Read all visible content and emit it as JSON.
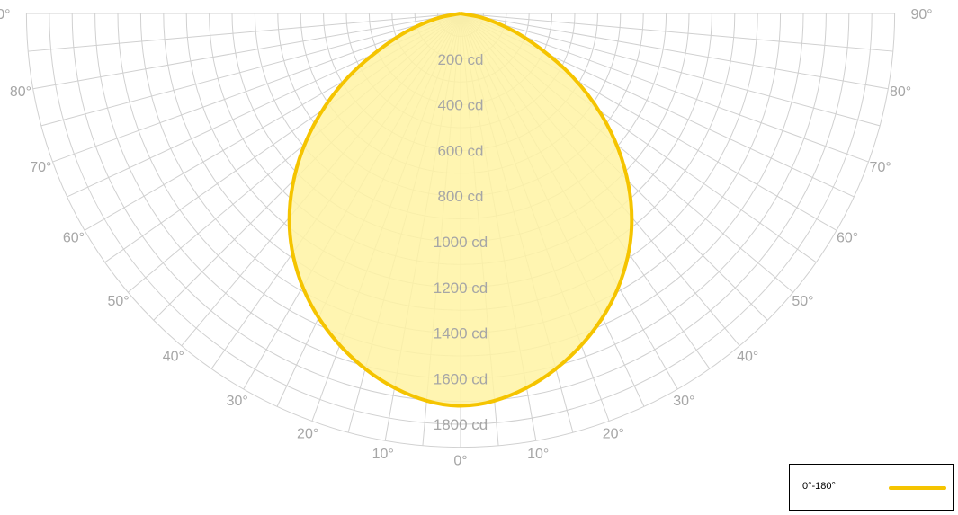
{
  "chart_data": {
    "type": "polar-luminous-intensity",
    "unit": "cd",
    "angles_deg": [
      0,
      10,
      20,
      30,
      40,
      50,
      60,
      70,
      80,
      90
    ],
    "angle_labels": [
      "0°",
      "10°",
      "20°",
      "30°",
      "40°",
      "50°",
      "60°",
      "70°",
      "80°",
      "90°"
    ],
    "radial_labels": [
      "200 cd",
      "400 cd",
      "600 cd",
      "800 cd",
      "1000 cd",
      "1200 cd",
      "1400 cd",
      "1600 cd",
      "1800 cd"
    ],
    "radial_values": [
      200,
      400,
      600,
      800,
      1000,
      1200,
      1400,
      1600,
      1800
    ],
    "rlim": [
      0,
      1900
    ],
    "grid": true,
    "series": [
      {
        "name": "0°-180°",
        "color": "#f5c400",
        "fill": "#fff3a3",
        "angles": [
          0,
          10,
          20,
          30,
          40,
          50,
          60,
          70,
          80,
          90
        ],
        "values": [
          1740,
          1680,
          1560,
          1400,
          1190,
          920,
          620,
          320,
          120,
          0
        ]
      }
    ],
    "legend_position": "bottom-right"
  },
  "legend": {
    "label": "0°-180°"
  },
  "colors": {
    "grid": "#d0d0d0",
    "axis_text": "#a6a6a6",
    "series": "#f5c400",
    "series_fill": "#fff3a3"
  }
}
